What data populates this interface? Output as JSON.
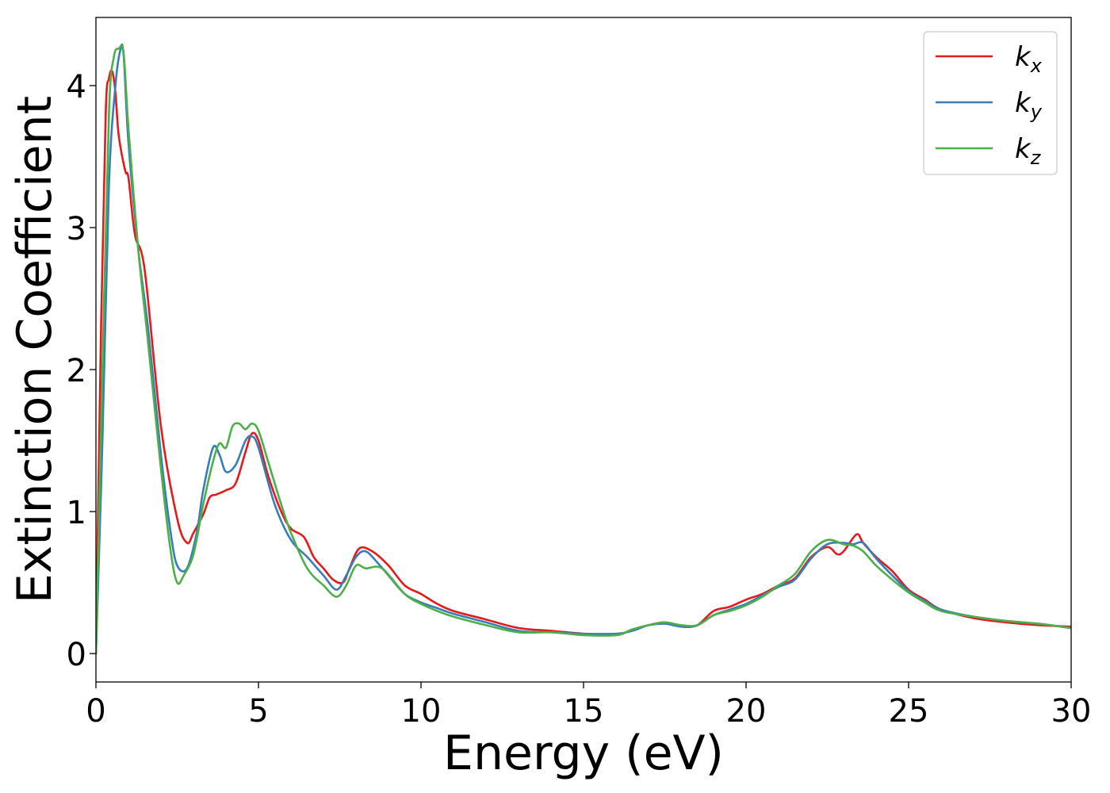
{
  "chart_data": {
    "type": "line",
    "title": "",
    "xlabel": "Energy (eV)",
    "ylabel": "Extinction Coefficient",
    "xlim": [
      0,
      30
    ],
    "ylim": [
      -0.2,
      4.48
    ],
    "xticks": [
      0,
      5,
      10,
      15,
      20,
      25,
      30
    ],
    "xtick_labels": [
      "0",
      "5",
      "10",
      "15",
      "20",
      "25",
      "30"
    ],
    "yticks": [
      0,
      1,
      2,
      3,
      4
    ],
    "ytick_labels": [
      "0",
      "1",
      "2",
      "3",
      "4"
    ],
    "grid": false,
    "legend_position": "top-right",
    "series": [
      {
        "name": "k",
        "subscript": "x",
        "color": "#e41a1c",
        "x": [
          0,
          0.15,
          0.3,
          0.4,
          0.5,
          0.6,
          0.7,
          0.9,
          1.0,
          1.2,
          1.5,
          2.0,
          2.5,
          2.8,
          3.0,
          3.3,
          3.5,
          3.7,
          4.0,
          4.3,
          4.6,
          4.8,
          5.0,
          5.3,
          5.7,
          6.0,
          6.4,
          6.7,
          7.0,
          7.3,
          7.6,
          7.8,
          8.1,
          8.5,
          9.0,
          9.5,
          10.0,
          10.5,
          11.0,
          12.0,
          13.0,
          14.0,
          15.0,
          16.0,
          16.5,
          17.0,
          17.5,
          18.0,
          18.5,
          19.0,
          19.5,
          20.0,
          20.5,
          21.0,
          21.5,
          22.0,
          22.5,
          22.8,
          23.0,
          23.4,
          23.6,
          24.0,
          24.5,
          25.0,
          25.5,
          26.0,
          27.0,
          28.0,
          29.0,
          30.0
        ],
        "values": [
          0.0,
          2.2,
          3.8,
          4.05,
          4.1,
          3.95,
          3.65,
          3.4,
          3.35,
          2.95,
          2.7,
          1.6,
          0.95,
          0.78,
          0.85,
          0.98,
          1.1,
          1.12,
          1.15,
          1.2,
          1.42,
          1.55,
          1.5,
          1.25,
          1.0,
          0.88,
          0.82,
          0.68,
          0.6,
          0.52,
          0.5,
          0.6,
          0.74,
          0.72,
          0.62,
          0.48,
          0.42,
          0.35,
          0.3,
          0.24,
          0.18,
          0.16,
          0.14,
          0.13,
          0.17,
          0.2,
          0.22,
          0.19,
          0.2,
          0.3,
          0.33,
          0.38,
          0.42,
          0.48,
          0.53,
          0.68,
          0.75,
          0.7,
          0.72,
          0.84,
          0.78,
          0.68,
          0.58,
          0.45,
          0.38,
          0.31,
          0.25,
          0.22,
          0.2,
          0.19
        ]
      },
      {
        "name": "k",
        "subscript": "y",
        "color": "#377eb8",
        "x": [
          0,
          0.2,
          0.4,
          0.6,
          0.75,
          0.85,
          1.0,
          1.3,
          1.6,
          2.0,
          2.3,
          2.5,
          2.8,
          3.1,
          3.3,
          3.6,
          3.8,
          4.0,
          4.3,
          4.6,
          4.8,
          5.0,
          5.5,
          6.0,
          6.5,
          7.0,
          7.4,
          7.7,
          8.0,
          8.3,
          8.7,
          9.0,
          9.5,
          10.0,
          10.5,
          11.0,
          12.0,
          13.0,
          14.0,
          15.0,
          16.0,
          16.5,
          17.0,
          17.5,
          18.0,
          18.5,
          19.0,
          19.5,
          20.0,
          20.5,
          21.0,
          21.5,
          22.0,
          22.5,
          23.0,
          23.3,
          23.6,
          24.0,
          24.5,
          25.0,
          25.5,
          26.0,
          27.0,
          28.0,
          29.0,
          30.0
        ],
        "values": [
          0.0,
          1.5,
          3.3,
          4.0,
          4.25,
          4.22,
          3.6,
          2.85,
          2.3,
          1.4,
          0.85,
          0.62,
          0.6,
          0.85,
          1.15,
          1.45,
          1.4,
          1.28,
          1.33,
          1.5,
          1.53,
          1.45,
          1.05,
          0.8,
          0.68,
          0.55,
          0.45,
          0.55,
          0.68,
          0.72,
          0.63,
          0.55,
          0.42,
          0.36,
          0.32,
          0.28,
          0.22,
          0.16,
          0.15,
          0.14,
          0.14,
          0.16,
          0.2,
          0.21,
          0.19,
          0.2,
          0.27,
          0.31,
          0.35,
          0.41,
          0.47,
          0.52,
          0.67,
          0.77,
          0.78,
          0.77,
          0.78,
          0.67,
          0.55,
          0.44,
          0.37,
          0.31,
          0.26,
          0.23,
          0.21,
          0.18
        ]
      },
      {
        "name": "k",
        "subscript": "z",
        "color": "#4daf4a",
        "x": [
          0,
          0.2,
          0.4,
          0.55,
          0.7,
          0.85,
          1.0,
          1.3,
          1.6,
          2.0,
          2.3,
          2.5,
          2.7,
          3.0,
          3.3,
          3.6,
          3.8,
          4.0,
          4.2,
          4.4,
          4.6,
          4.8,
          5.0,
          5.3,
          5.7,
          6.0,
          6.5,
          7.0,
          7.4,
          7.7,
          8.0,
          8.3,
          8.8,
          9.5,
          10.0,
          10.5,
          11.0,
          12.0,
          13.0,
          14.0,
          15.0,
          16.0,
          16.5,
          17.0,
          17.5,
          18.0,
          18.5,
          19.0,
          19.5,
          20.0,
          20.5,
          21.0,
          21.5,
          22.0,
          22.5,
          23.0,
          23.3,
          23.6,
          24.0,
          24.5,
          25.0,
          25.5,
          26.0,
          27.0,
          28.0,
          29.0,
          30.0
        ],
        "values": [
          0.0,
          2.0,
          3.8,
          4.2,
          4.26,
          4.23,
          3.7,
          2.85,
          2.2,
          1.3,
          0.72,
          0.5,
          0.55,
          0.7,
          1.05,
          1.35,
          1.48,
          1.45,
          1.6,
          1.62,
          1.58,
          1.62,
          1.57,
          1.35,
          1.05,
          0.85,
          0.6,
          0.48,
          0.4,
          0.48,
          0.62,
          0.6,
          0.6,
          0.42,
          0.35,
          0.3,
          0.26,
          0.2,
          0.15,
          0.15,
          0.13,
          0.13,
          0.17,
          0.2,
          0.22,
          0.2,
          0.2,
          0.27,
          0.3,
          0.34,
          0.4,
          0.48,
          0.56,
          0.72,
          0.8,
          0.77,
          0.76,
          0.72,
          0.62,
          0.52,
          0.43,
          0.36,
          0.3,
          0.26,
          0.23,
          0.21,
          0.18
        ]
      }
    ]
  }
}
